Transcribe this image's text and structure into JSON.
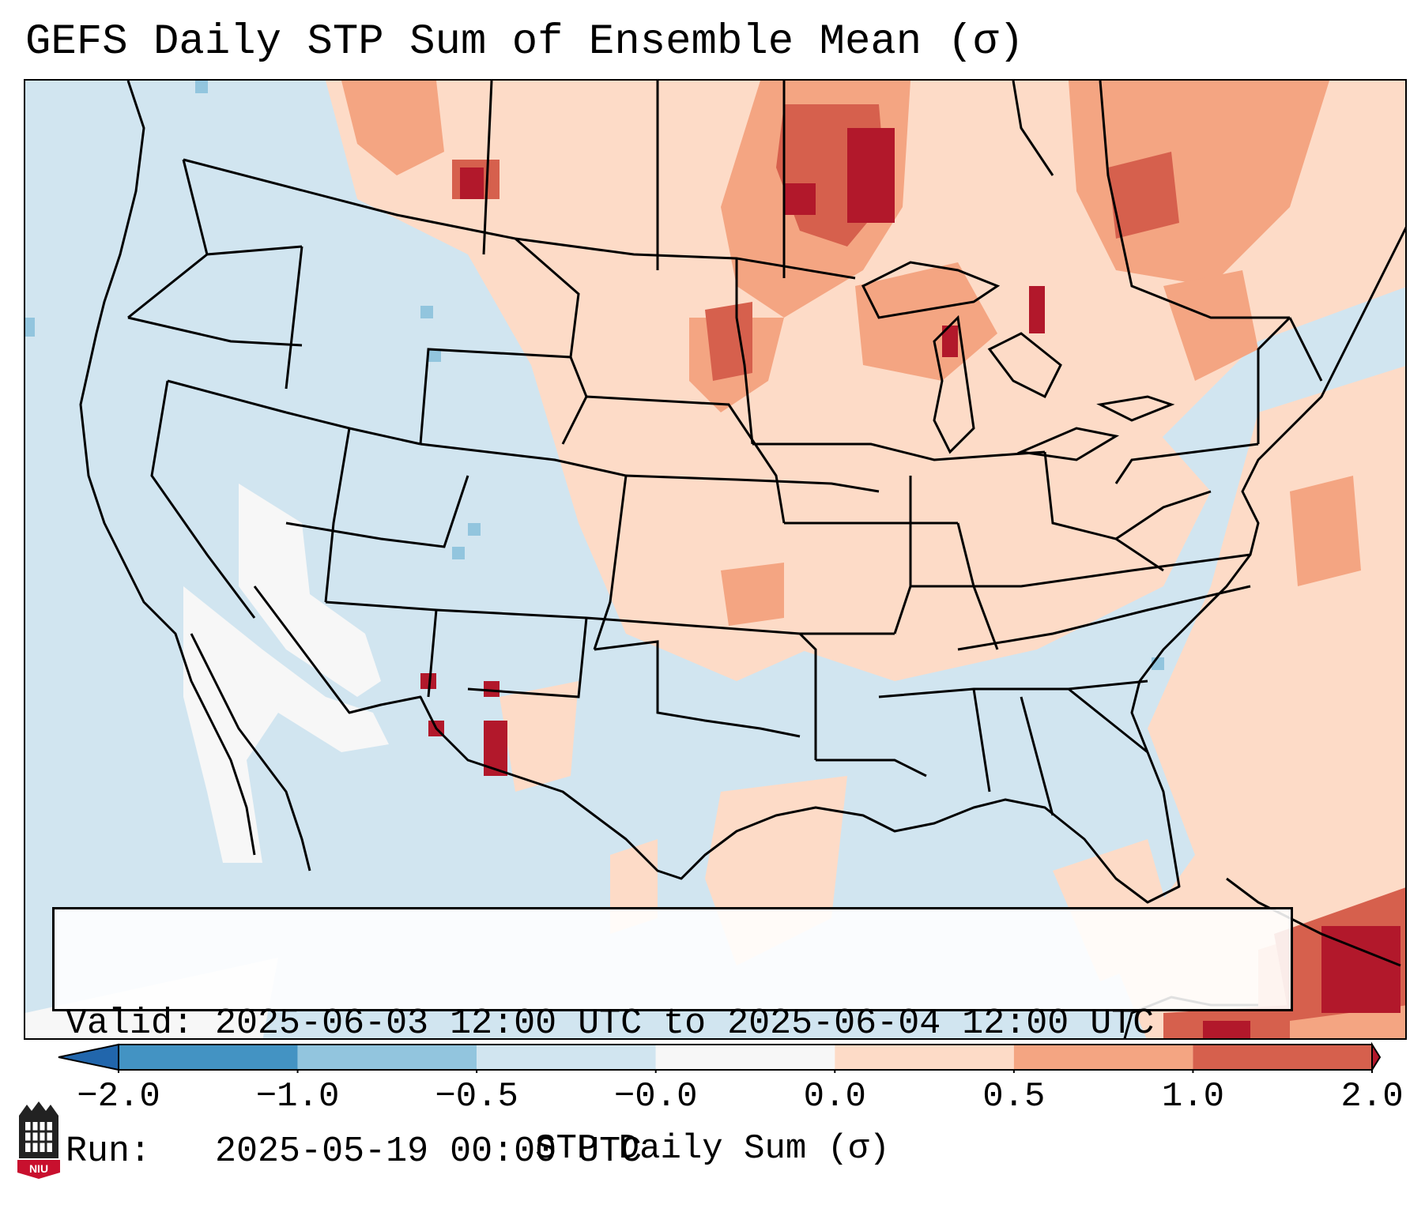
{
  "title": "GEFS Daily STP Sum of Ensemble Mean (σ)",
  "info": {
    "valid_label": "Valid:",
    "valid_range": "2025-06-03 12:00 UTC to 2025-06-04 12:00 UTC",
    "run_label": "Run:",
    "run_time": "2025-05-19 00:00 UTC"
  },
  "colorbar": {
    "title": "STP Daily Sum (σ)",
    "ticks": [
      "−2.0",
      "−1.0",
      "−0.5",
      "−0.0",
      "0.0",
      "0.5",
      "1.0",
      "2.0"
    ],
    "bins": [
      {
        "range": "< -2.0",
        "color": "#2166ac"
      },
      {
        "range": "-2.0 to -1.0",
        "color": "#4393c3"
      },
      {
        "range": "-1.0 to -0.5",
        "color": "#92c5de"
      },
      {
        "range": "-0.5 to -0.0",
        "color": "#d1e5f0"
      },
      {
        "range": "-0.0 to 0.0",
        "color": "#f7f7f7"
      },
      {
        "range": "0.0 to 0.5",
        "color": "#fddbc7"
      },
      {
        "range": "0.5 to 1.0",
        "color": "#f4a582"
      },
      {
        "range": "1.0 to 2.0",
        "color": "#d6604d"
      },
      {
        "range": "> 2.0",
        "color": "#b2182b"
      }
    ]
  },
  "logo": {
    "text": "NIU",
    "color": "#c8102e"
  }
}
